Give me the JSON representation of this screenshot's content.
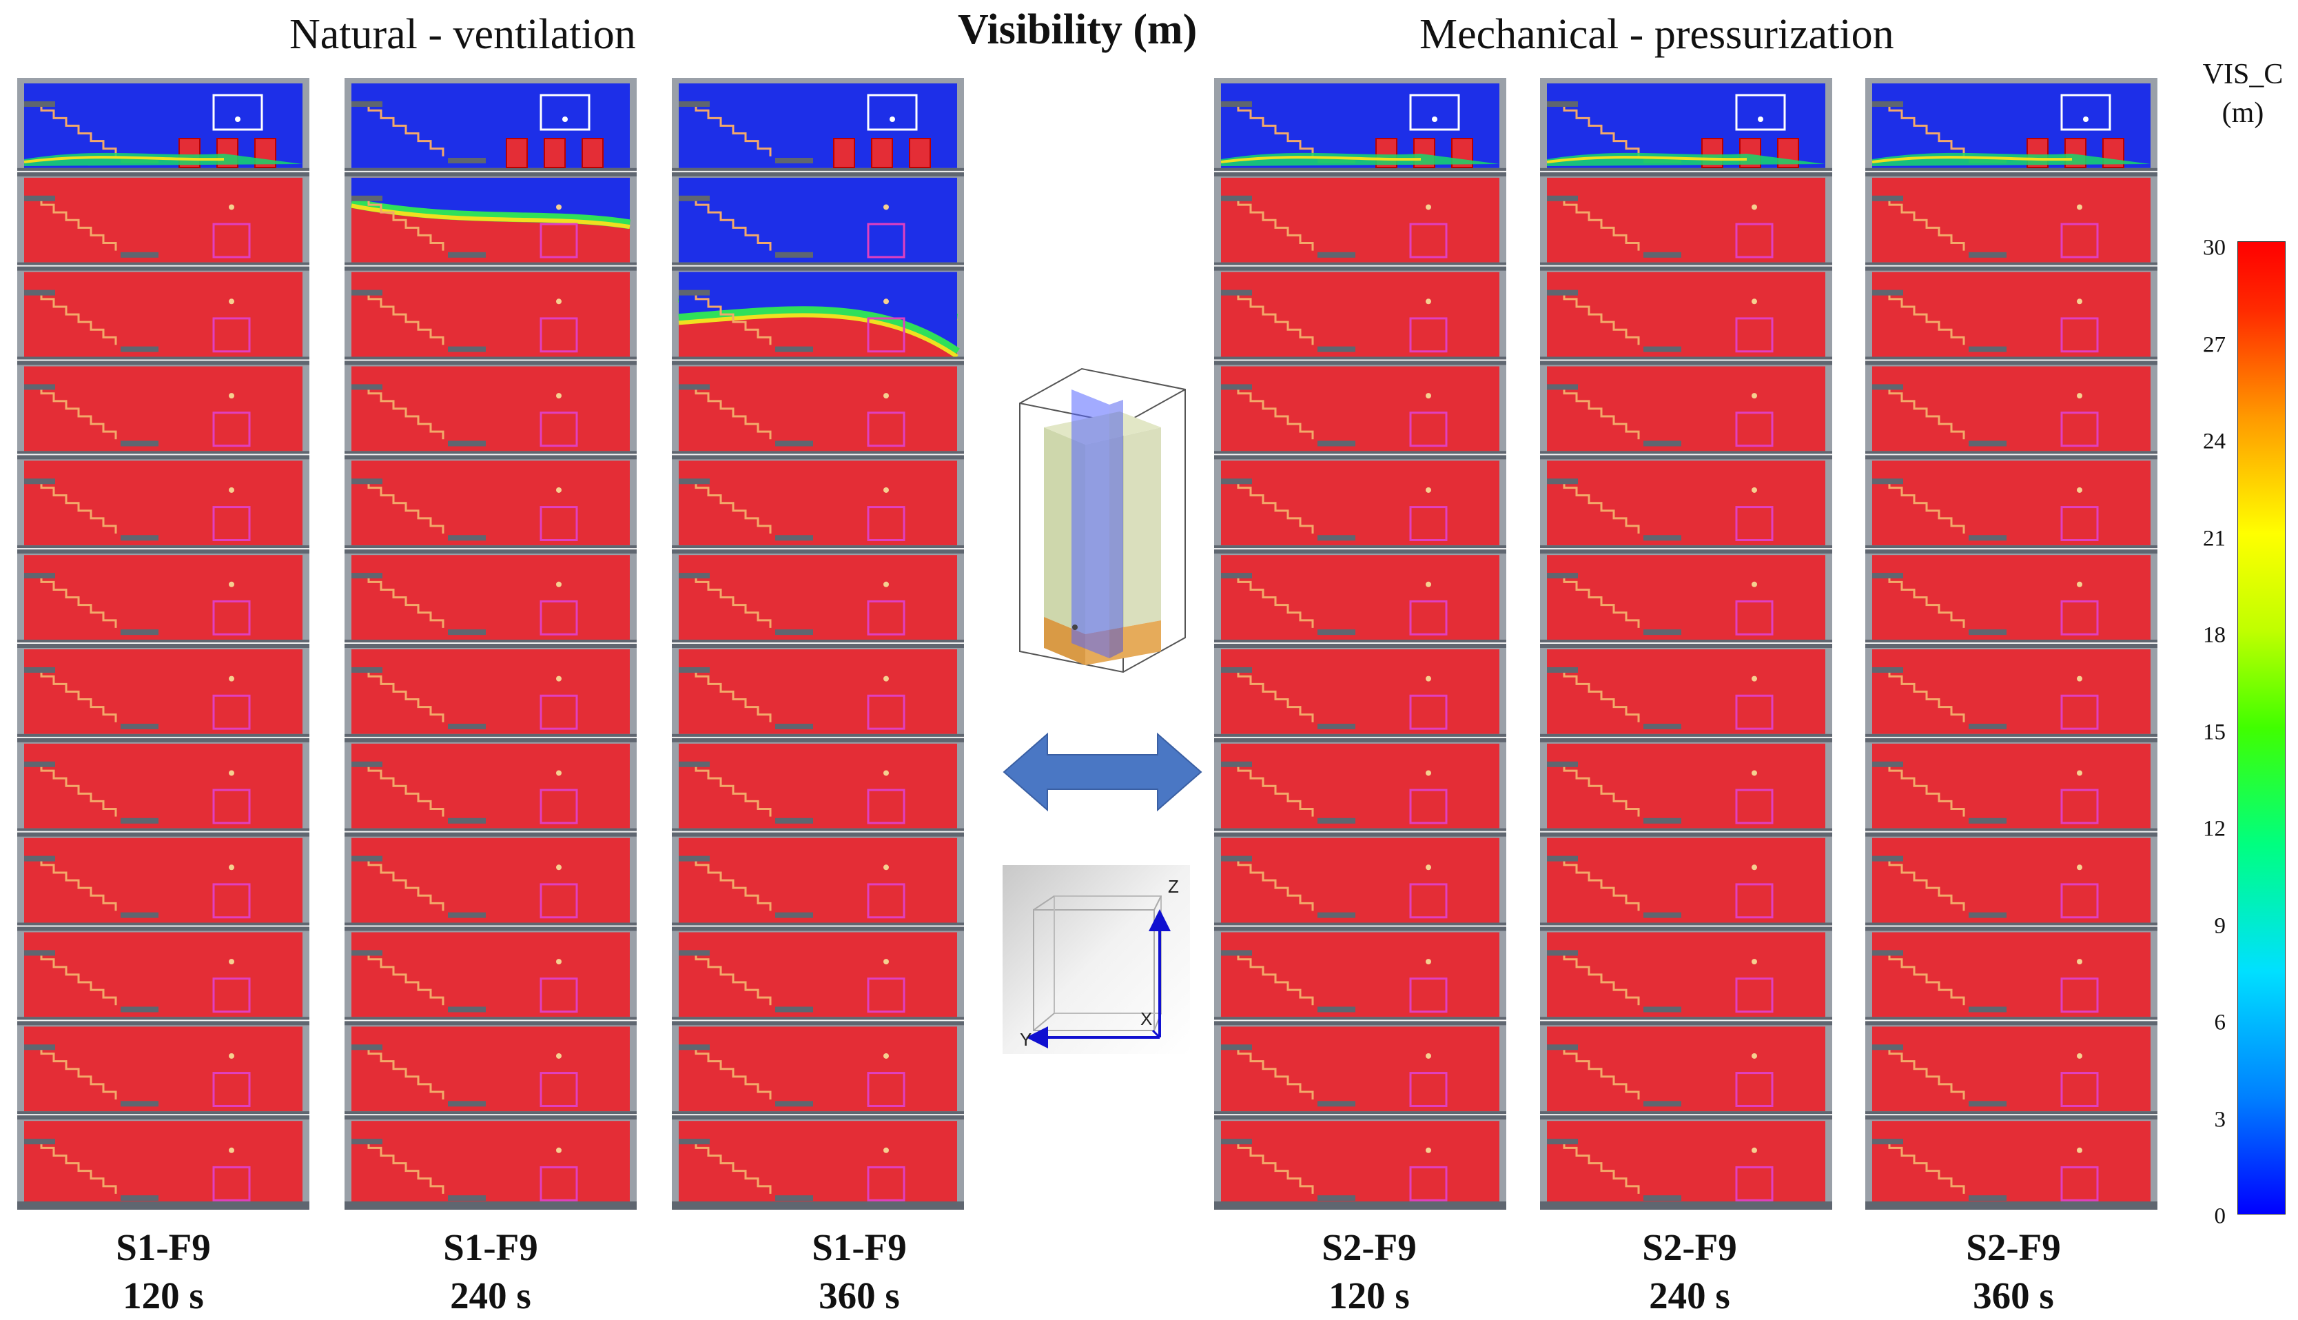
{
  "header": {
    "left_title": "Natural - ventilation",
    "center_title": "Visibility (m)",
    "right_title": "Mechanical  - pressurization"
  },
  "panels": [
    {
      "scenario": "S1-F9",
      "time": "120 s",
      "smoky_floors": 0,
      "top_mix": 1,
      "blue_top_floor": 0,
      "smoke_line": 0
    },
    {
      "scenario": "S1-F9",
      "time": "240 s",
      "smoky_floors": 1,
      "top_mix": 0,
      "blue_top_floor": 0,
      "smoke_line": 0.35
    },
    {
      "scenario": "S1-F9",
      "time": "360 s",
      "smoky_floors": 2,
      "top_mix": 0,
      "blue_top_floor": 1,
      "smoke_line": 0.45
    },
    {
      "scenario": "S2-F9",
      "time": "120 s",
      "smoky_floors": 0,
      "top_mix": 1,
      "blue_top_floor": 0,
      "smoke_line": 0
    },
    {
      "scenario": "S2-F9",
      "time": "240 s",
      "smoky_floors": 0,
      "top_mix": 1,
      "blue_top_floor": 0,
      "smoke_line": 0
    },
    {
      "scenario": "S2-F9",
      "time": "360 s",
      "smoky_floors": 0,
      "top_mix": 1,
      "blue_top_floor": 0,
      "smoke_line": 0
    }
  ],
  "colorbar": {
    "title_line1": "VIS_C",
    "title_line2": "(m)",
    "min": 0,
    "max": 30,
    "ticks": [
      "30",
      "27",
      "24",
      "21",
      "18",
      "15",
      "12",
      "9",
      "6",
      "3",
      "0"
    ]
  },
  "axes_triad": {
    "z": "Z",
    "x": "X",
    "y": "Y"
  },
  "colors": {
    "clear": "#e42d36",
    "smoke": "#1d2fe8",
    "wall": "#5f6670",
    "stair": "#f3a96a",
    "door": "#e040c0",
    "arrow": "#4a77c4"
  }
}
